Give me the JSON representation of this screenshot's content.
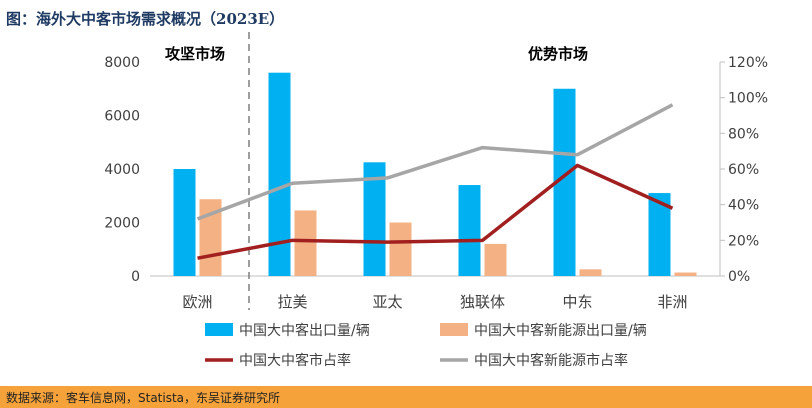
{
  "title": "图：海外大中客市场需求概况（2023E）",
  "source": "数据来源：客车信息网，Statista，东吴证券研究所",
  "annotations": {
    "left_region": "攻坚市场",
    "right_region": "优势市场"
  },
  "chart_data": {
    "type": "bar",
    "categories": [
      "欧洲",
      "拉美",
      "亚太",
      "独联体",
      "中东",
      "非洲"
    ],
    "series": [
      {
        "name": "中国大中客出口量/辆",
        "type": "bar",
        "axis": "left",
        "color": "#00b0f0",
        "values": [
          4000,
          7600,
          4250,
          3400,
          7000,
          3100
        ]
      },
      {
        "name": "中国大中客新能源出口量/辆",
        "type": "bar",
        "axis": "left",
        "color": "#f4b183",
        "values": [
          2870,
          2450,
          2000,
          1200,
          250,
          130
        ]
      },
      {
        "name": "中国大中客市占率",
        "type": "line",
        "axis": "right",
        "color": "#a11f1f",
        "values": [
          10,
          20,
          19,
          20,
          62,
          38
        ]
      },
      {
        "name": "中国大中客新能源市占率",
        "type": "line",
        "axis": "right",
        "color": "#a6a6a6",
        "values": [
          32,
          52,
          55,
          72,
          68,
          96
        ]
      }
    ],
    "y_left": {
      "min": 0,
      "max": 8000,
      "ticks": [
        0,
        2000,
        4000,
        6000,
        8000
      ]
    },
    "y_right": {
      "min": 0,
      "max": 120,
      "ticks": [
        "0%",
        "20%",
        "40%",
        "60%",
        "80%",
        "100%",
        "120%"
      ]
    },
    "legend_position": "bottom",
    "grid": false
  }
}
